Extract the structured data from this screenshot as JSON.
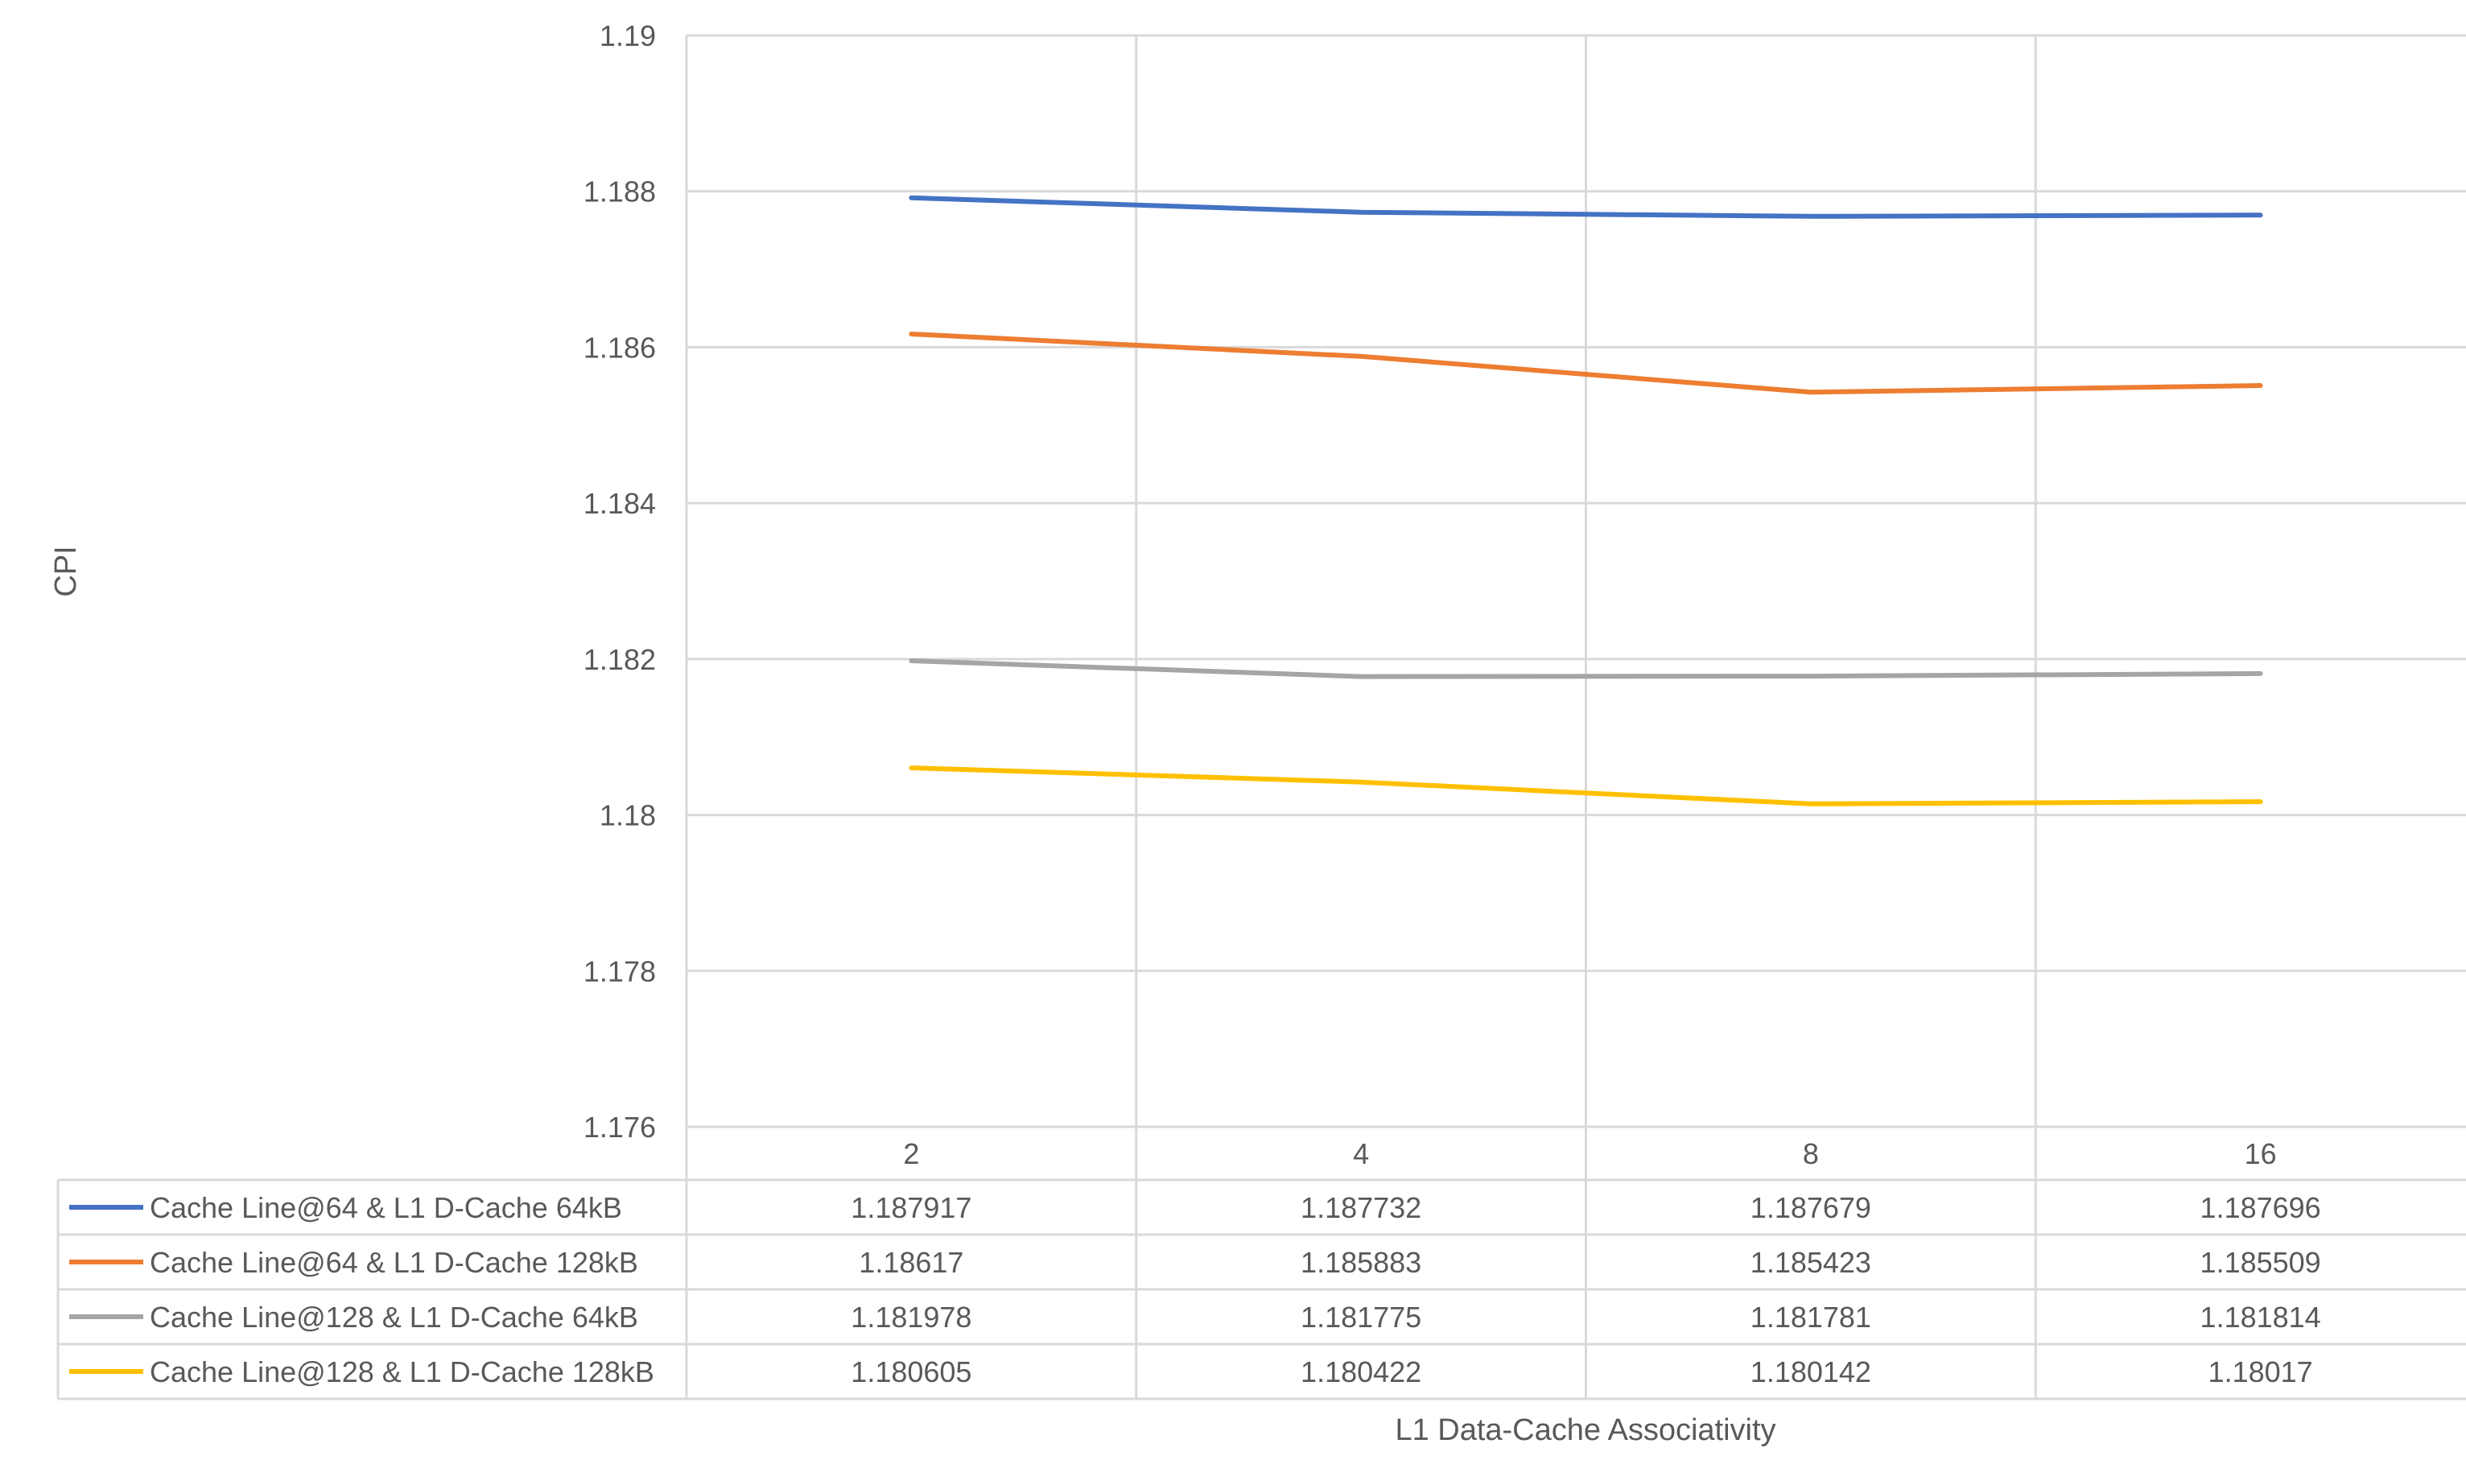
{
  "chart_data": {
    "type": "line",
    "title": "",
    "xlabel": "L1 Data-Cache Associativity",
    "ylabel": "CPI",
    "categories": [
      "2",
      "4",
      "8",
      "16"
    ],
    "ylim": [
      1.176,
      1.19
    ],
    "yticks": [
      "1.19",
      "1.188",
      "1.186",
      "1.184",
      "1.182",
      "1.18",
      "1.178",
      "1.176"
    ],
    "grid": true,
    "legend": "data-table-below",
    "series": [
      {
        "name": "Cache Line@64 & L1 D-Cache 64kB",
        "color": "#4472C4",
        "values": [
          1.187917,
          1.187732,
          1.187679,
          1.187696
        ],
        "labels": [
          "1.187917",
          "1.187732",
          "1.187679",
          "1.187696"
        ]
      },
      {
        "name": "Cache Line@64 & L1 D-Cache 128kB",
        "color": "#ED7D31",
        "values": [
          1.18617,
          1.185883,
          1.185423,
          1.185509
        ],
        "labels": [
          "1.18617",
          "1.185883",
          "1.185423",
          "1.185509"
        ]
      },
      {
        "name": "Cache Line@128 & L1 D-Cache 64kB",
        "color": "#A5A5A5",
        "values": [
          1.181978,
          1.181775,
          1.181781,
          1.181814
        ],
        "labels": [
          "1.181978",
          "1.181775",
          "1.181781",
          "1.181814"
        ]
      },
      {
        "name": "Cache Line@128 & L1 D-Cache 128kB",
        "color": "#FFC000",
        "values": [
          1.180605,
          1.180422,
          1.180142,
          1.18017
        ],
        "labels": [
          "1.180605",
          "1.180422",
          "1.180142",
          "1.18017"
        ]
      }
    ]
  }
}
